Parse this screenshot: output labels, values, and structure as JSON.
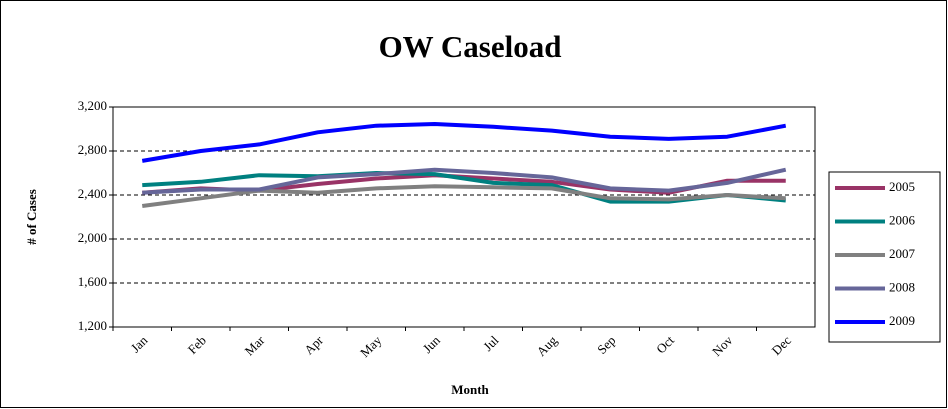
{
  "chart_data": {
    "type": "line",
    "title": "OW Caseload",
    "x_label": "Month",
    "y_label": "# of Cases",
    "categories": [
      "Jan",
      "Feb",
      "Mar",
      "Apr",
      "May",
      "Jun",
      "Jul",
      "Aug",
      "Sep",
      "Oct",
      "Nov",
      "Dec"
    ],
    "series": [
      {
        "name": "2005",
        "color": "#993366",
        "values": [
          2420,
          2460,
          2440,
          2500,
          2550,
          2580,
          2550,
          2520,
          2450,
          2420,
          2530,
          2530
        ]
      },
      {
        "name": "2006",
        "color": "#008080",
        "values": [
          2490,
          2520,
          2580,
          2570,
          2600,
          2590,
          2510,
          2490,
          2340,
          2340,
          2400,
          2350
        ]
      },
      {
        "name": "2007",
        "color": "#808080",
        "values": [
          2300,
          2370,
          2440,
          2420,
          2460,
          2480,
          2470,
          2460,
          2370,
          2360,
          2400,
          2370
        ]
      },
      {
        "name": "2008",
        "color": "#666699",
        "values": [
          2420,
          2450,
          2450,
          2560,
          2590,
          2630,
          2600,
          2560,
          2460,
          2440,
          2510,
          2630
        ]
      },
      {
        "name": "2009",
        "color": "#0000ff",
        "values": [
          2710,
          2800,
          2860,
          2970,
          3030,
          3045,
          3020,
          2985,
          2930,
          2910,
          2930,
          3030
        ]
      }
    ],
    "ylim": [
      1200,
      3200
    ],
    "yticks": [
      {
        "value": 1200,
        "label": "1,200"
      },
      {
        "value": 1600,
        "label": "1,600"
      },
      {
        "value": 2000,
        "label": "2,000"
      },
      {
        "value": 2400,
        "label": "2,400"
      },
      {
        "value": 2800,
        "label": "2,800"
      },
      {
        "value": 3200,
        "label": "3,200"
      }
    ],
    "grid": true,
    "legend": "right"
  }
}
